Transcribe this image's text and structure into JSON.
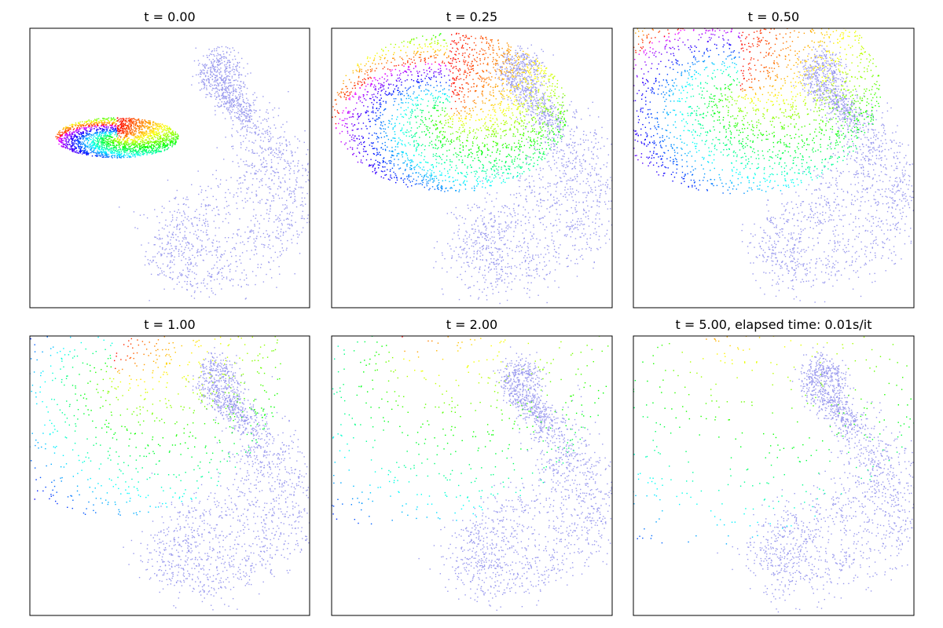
{
  "figure": {
    "background": "#ffffff",
    "frame_color": "#000000",
    "target_color": "#9999ee"
  },
  "chart_data": [
    {
      "type": "scatter",
      "title": "t = 0.00",
      "xticks": [],
      "yticks": [],
      "grid": false,
      "source_distribution": {
        "shape": "ellipse",
        "center": [
          0.31,
          0.61
        ],
        "radii": [
          0.22,
          0.12
        ],
        "color_by": "rainbow (hue by angle, red at top)"
      },
      "target_distribution": {
        "shape": "paisley",
        "color": "#9999ee"
      }
    },
    {
      "type": "scatter",
      "title": "t = 0.25",
      "xticks": [],
      "yticks": [],
      "grid": false,
      "source_distribution": {
        "shape": "ellipse",
        "center": [
          0.42,
          0.7
        ],
        "radii": [
          0.42,
          0.38
        ],
        "color_by": "rainbow"
      },
      "target_distribution": {
        "shape": "paisley",
        "color": "#9999ee"
      }
    },
    {
      "type": "scatter",
      "title": "t = 0.50",
      "xticks": [],
      "yticks": [],
      "grid": false,
      "source_distribution": {
        "shape": "ellipse",
        "center": [
          0.38,
          0.78
        ],
        "radii": [
          0.5,
          0.5
        ],
        "color_by": "rainbow"
      },
      "target_distribution": {
        "shape": "paisley",
        "color": "#9999ee"
      }
    },
    {
      "type": "scatter",
      "title": "t = 1.00",
      "xticks": [],
      "yticks": [],
      "grid": false,
      "source_distribution": {
        "shape": "ellipse",
        "center": [
          0.3,
          0.88
        ],
        "radii": [
          0.6,
          0.7
        ],
        "color_by": "rainbow"
      },
      "target_distribution": {
        "shape": "paisley",
        "color": "#9999ee"
      }
    },
    {
      "type": "scatter",
      "title": "t = 2.00",
      "xticks": [],
      "yticks": [],
      "grid": false,
      "source_distribution": {
        "shape": "ellipse",
        "center": [
          0.25,
          0.95
        ],
        "radii": [
          0.75,
          0.85
        ],
        "color_by": "rainbow"
      },
      "target_distribution": {
        "shape": "paisley",
        "color": "#9999ee"
      }
    },
    {
      "type": "scatter",
      "title": "t = 5.00, elapsed time: 0.01s/it",
      "xticks": [],
      "yticks": [],
      "grid": false,
      "source_distribution": {
        "shape": "ellipse",
        "center": [
          0.2,
          1.0
        ],
        "radii": [
          0.9,
          1.0
        ],
        "color_by": "rainbow"
      },
      "target_distribution": {
        "shape": "paisley",
        "color": "#9999ee"
      }
    }
  ]
}
